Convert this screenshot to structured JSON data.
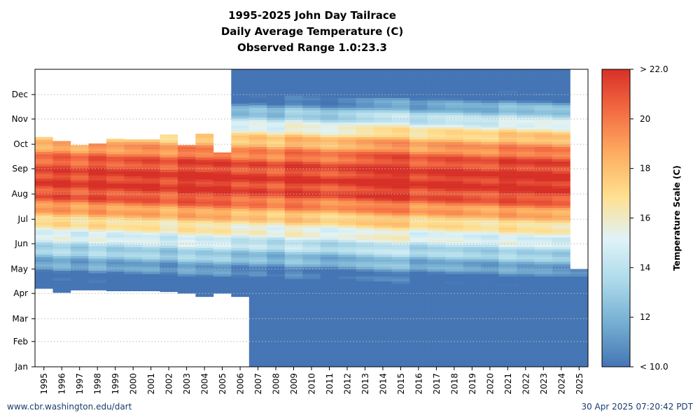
{
  "chart_data": {
    "type": "heatmap",
    "title_lines": [
      "1995-2025 John Day Tailrace",
      "Daily Average Temperature (C)",
      "Observed Range 1.0:23.3"
    ],
    "x_categories": [
      "1995",
      "1996",
      "1997",
      "1998",
      "1999",
      "2000",
      "2001",
      "2002",
      "2003",
      "2004",
      "2005",
      "2006",
      "2007",
      "2008",
      "2009",
      "2010",
      "2011",
      "2012",
      "2013",
      "2014",
      "2015",
      "2016",
      "2017",
      "2018",
      "2019",
      "2020",
      "2021",
      "2022",
      "2023",
      "2024",
      "2025"
    ],
    "y_tick_labels": [
      "Jan",
      "Feb",
      "Mar",
      "Apr",
      "May",
      "Jun",
      "Jul",
      "Aug",
      "Sep",
      "Oct",
      "Nov",
      "Dec"
    ],
    "colorbar": {
      "label": "Temperature Scale (C)",
      "min": 10.0,
      "max": 22.0,
      "min_label": "< 10.0",
      "max_label": "> 22.0",
      "ticks": [
        "12",
        "14",
        "16",
        "18",
        "20"
      ],
      "stops": [
        "#4575b4",
        "#74add1",
        "#abd9e9",
        "#e0f3f8",
        "#fee090",
        "#fdae61",
        "#f46d43",
        "#d73027"
      ]
    },
    "coverage_day_of_year": [
      {
        "year": "1995",
        "start": 97,
        "end": 282
      },
      {
        "year": "1996",
        "start": 92,
        "end": 277
      },
      {
        "year": "1997",
        "start": 95,
        "end": 272
      },
      {
        "year": "1998",
        "start": 95,
        "end": 274
      },
      {
        "year": "1999",
        "start": 94,
        "end": 280
      },
      {
        "year": "2000",
        "start": 94,
        "end": 279
      },
      {
        "year": "2001",
        "start": 94,
        "end": 279
      },
      {
        "year": "2002",
        "start": 93,
        "end": 285
      },
      {
        "year": "2003",
        "start": 91,
        "end": 272
      },
      {
        "year": "2004",
        "start": 87,
        "end": 286
      },
      {
        "year": "2005",
        "start": 91,
        "end": 263
      },
      {
        "year": "2006",
        "start": 87,
        "end": 365
      },
      {
        "year": "2007",
        "start": 1,
        "end": 365
      },
      {
        "year": "2008",
        "start": 1,
        "end": 365
      },
      {
        "year": "2009",
        "start": 1,
        "end": 365
      },
      {
        "year": "2010",
        "start": 1,
        "end": 365
      },
      {
        "year": "2011",
        "start": 1,
        "end": 365
      },
      {
        "year": "2012",
        "start": 1,
        "end": 365
      },
      {
        "year": "2013",
        "start": 1,
        "end": 365
      },
      {
        "year": "2014",
        "start": 1,
        "end": 365
      },
      {
        "year": "2015",
        "start": 1,
        "end": 365
      },
      {
        "year": "2016",
        "start": 1,
        "end": 365
      },
      {
        "year": "2017",
        "start": 1,
        "end": 365
      },
      {
        "year": "2018",
        "start": 1,
        "end": 365
      },
      {
        "year": "2019",
        "start": 1,
        "end": 365
      },
      {
        "year": "2020",
        "start": 1,
        "end": 365
      },
      {
        "year": "2021",
        "start": 1,
        "end": 365
      },
      {
        "year": "2022",
        "start": 1,
        "end": 365
      },
      {
        "year": "2023",
        "start": 1,
        "end": 365
      },
      {
        "year": "2024",
        "start": 1,
        "end": 365
      },
      {
        "year": "2025",
        "start": 1,
        "end": 120
      }
    ],
    "seasonal_profile_c": [
      {
        "doy": 1,
        "temp": 6.0
      },
      {
        "doy": 60,
        "temp": 5.0
      },
      {
        "doy": 100,
        "temp": 8.5
      },
      {
        "doy": 125,
        "temp": 11.5
      },
      {
        "doy": 150,
        "temp": 14.0
      },
      {
        "doy": 170,
        "temp": 16.0
      },
      {
        "doy": 190,
        "temp": 18.5
      },
      {
        "doy": 210,
        "temp": 21.0
      },
      {
        "doy": 230,
        "temp": 21.7
      },
      {
        "doy": 250,
        "temp": 21.0
      },
      {
        "doy": 265,
        "temp": 19.5
      },
      {
        "doy": 282,
        "temp": 17.5
      },
      {
        "doy": 300,
        "temp": 14.5
      },
      {
        "doy": 320,
        "temp": 11.5
      },
      {
        "doy": 335,
        "temp": 9.0
      },
      {
        "doy": 366,
        "temp": 6.0
      }
    ],
    "year_offsets_c": [
      -0.3,
      0.2,
      -0.5,
      0.4,
      -0.2,
      0.1,
      0.3,
      -0.4,
      0.6,
      0.2,
      0.5,
      -0.3,
      0.1,
      -0.6,
      0.4,
      0.0,
      -0.5,
      -0.1,
      0.3,
      0.6,
      0.8,
      -0.2,
      0.2,
      0.4,
      0.1,
      -0.1,
      0.7,
      0.3,
      0.5,
      0.2,
      0.0
    ]
  },
  "footer": {
    "left": "www.cbr.washington.edu/dart",
    "right": "30 Apr 2025 07:20:42 PDT"
  }
}
